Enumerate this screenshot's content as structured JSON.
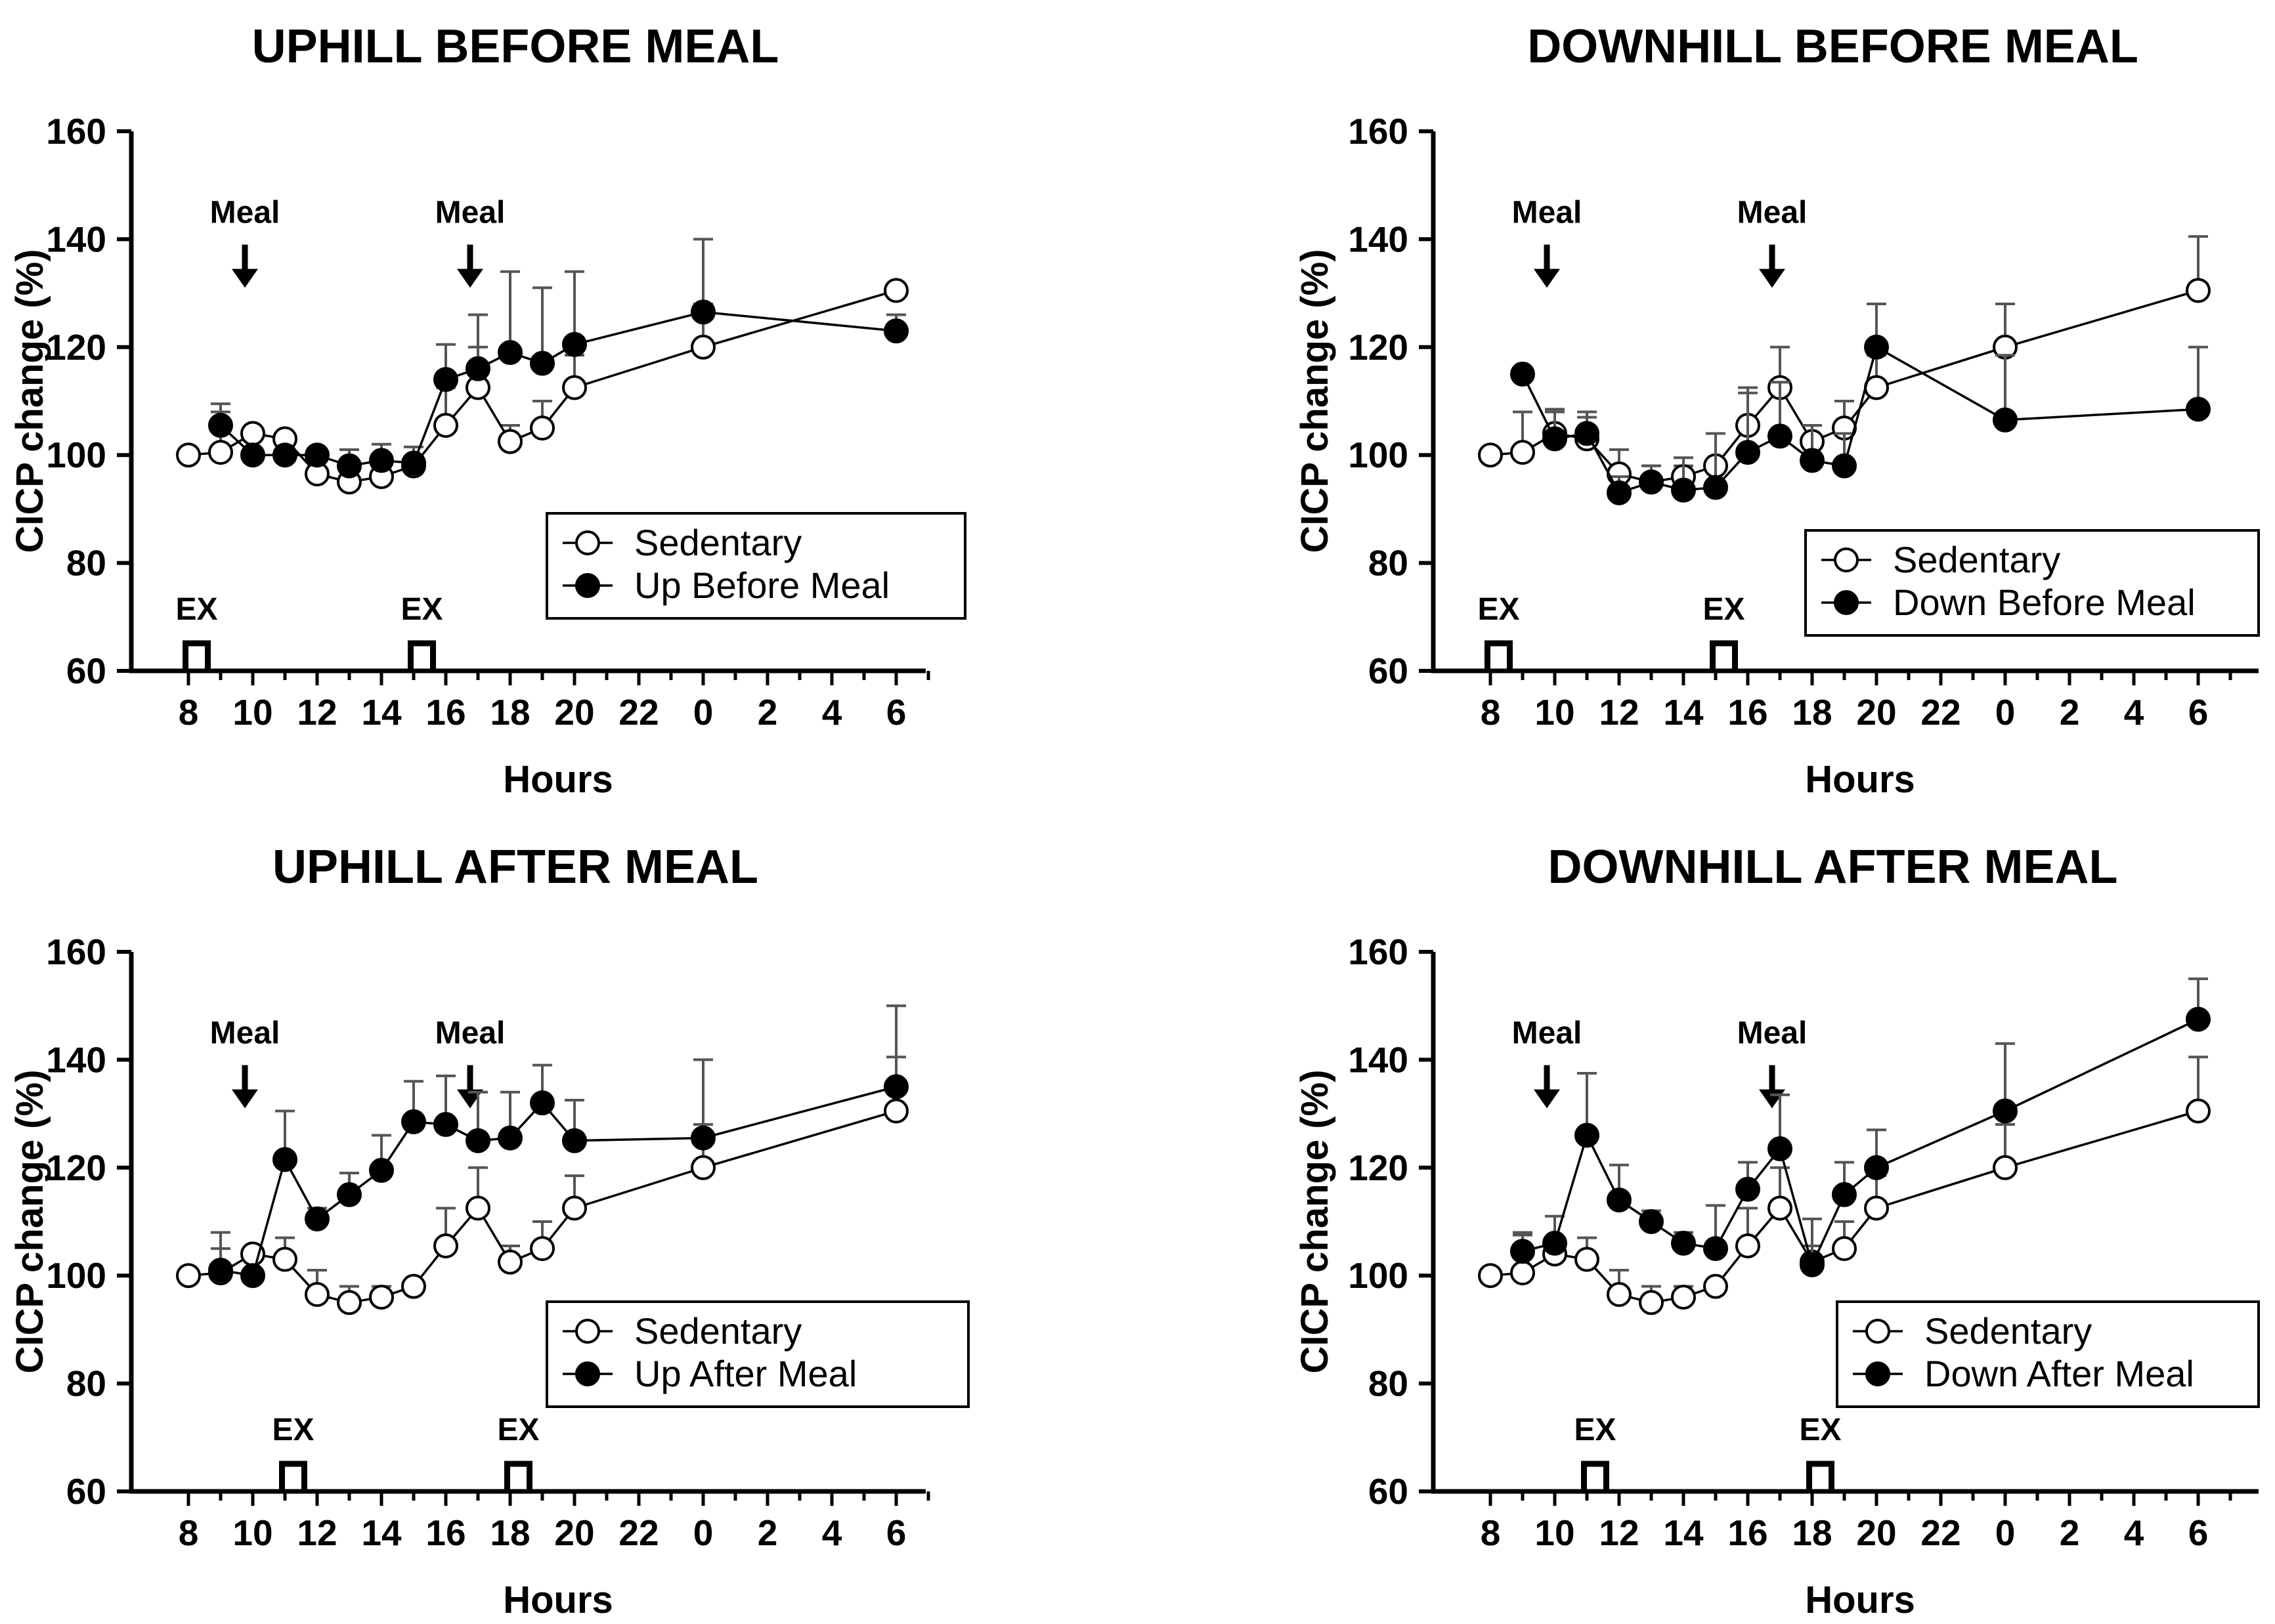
{
  "chart_data": [
    {
      "type": "line",
      "title": "UPHILL BEFORE MEAL",
      "xlabel": "Hours",
      "ylabel": "CICP change (%)",
      "ylim": [
        60,
        160
      ],
      "yticks": [
        60,
        80,
        100,
        120,
        140,
        160
      ],
      "xticks": [
        "8",
        "10",
        "12",
        "14",
        "16",
        "18",
        "20",
        "22",
        "0",
        "2",
        "4",
        "6"
      ],
      "x_units": "clock hours (8 through 30; 0-6 is next day)",
      "legend_position": "center-right",
      "annotations": {
        "meal_label": "Meal",
        "meal_hours": [
          10,
          17
        ],
        "ex_label": "EX",
        "ex_hours": [
          8.5,
          15.5
        ]
      },
      "series": [
        {
          "name": "Sedentary",
          "marker": "open-circle",
          "x": [
            8,
            9,
            10,
            11,
            12,
            13,
            14,
            15,
            16,
            17,
            18,
            19,
            20,
            24,
            30
          ],
          "y": [
            100,
            100.5,
            104,
            103,
            96.5,
            95,
            96,
            98,
            105.5,
            112.5,
            102.5,
            105,
            112.5,
            120,
            130.5
          ],
          "err": [
            0,
            7.5,
            0,
            0,
            4.5,
            3,
            2,
            0,
            7,
            7.5,
            3,
            5,
            6,
            8,
            0
          ]
        },
        {
          "name": "Up Before Meal",
          "marker": "filled-circle",
          "x": [
            9,
            10,
            11,
            12,
            13,
            14,
            15,
            16,
            17,
            18,
            19,
            20,
            24,
            30
          ],
          "y": [
            105.5,
            100,
            100,
            100,
            98,
            99,
            98.5,
            114,
            116,
            119,
            117,
            120.5,
            126.5,
            123
          ],
          "err": [
            4,
            0,
            0,
            0,
            3,
            3,
            3,
            6.5,
            10,
            15,
            14,
            13.5,
            13.5,
            3
          ]
        }
      ]
    },
    {
      "type": "line",
      "title": "DOWNHILL BEFORE MEAL",
      "xlabel": "Hours",
      "ylabel": "CICP change (%)",
      "ylim": [
        60,
        160
      ],
      "yticks": [
        60,
        80,
        100,
        120,
        140,
        160
      ],
      "xticks": [
        "8",
        "10",
        "12",
        "14",
        "16",
        "18",
        "20",
        "22",
        "0",
        "2",
        "4",
        "6"
      ],
      "x_units": "clock hours (8 through 30; 0-6 is next day)",
      "legend_position": "lower-right",
      "annotations": {
        "meal_label": "Meal",
        "meal_hours": [
          10,
          17
        ],
        "ex_label": "EX",
        "ex_hours": [
          8.5,
          15.5
        ]
      },
      "series": [
        {
          "name": "Sedentary",
          "marker": "open-circle",
          "x": [
            8,
            9,
            10,
            11,
            12,
            13,
            14,
            15,
            16,
            17,
            18,
            19,
            20,
            24,
            30
          ],
          "y": [
            100,
            100.5,
            104,
            103,
            96.5,
            95,
            96,
            98,
            105.5,
            112.5,
            102.5,
            105,
            112.5,
            120,
            130.5
          ],
          "err": [
            0,
            7.5,
            4.5,
            4,
            4.5,
            3,
            2,
            0,
            7,
            7.5,
            3,
            5,
            6,
            8,
            10
          ]
        },
        {
          "name": "Down Before Meal",
          "marker": "filled-circle",
          "x": [
            9,
            10,
            11,
            12,
            13,
            14,
            15,
            16,
            17,
            18,
            19,
            20,
            24,
            30
          ],
          "y": [
            115,
            103,
            104,
            93,
            95,
            93.5,
            94,
            100.5,
            103.5,
            99,
            98,
            120,
            106.5,
            108.5
          ],
          "err": [
            0,
            5,
            4,
            3,
            3,
            6,
            10,
            11,
            10,
            6.5,
            6,
            8,
            12,
            11.5
          ]
        }
      ]
    },
    {
      "type": "line",
      "title": "UPHILL AFTER MEAL",
      "xlabel": "Hours",
      "ylabel": "CICP change (%)",
      "ylim": [
        60,
        160
      ],
      "yticks": [
        60,
        80,
        100,
        120,
        140,
        160
      ],
      "xticks": [
        "8",
        "10",
        "12",
        "14",
        "16",
        "18",
        "20",
        "22",
        "0",
        "2",
        "4",
        "6"
      ],
      "x_units": "clock hours (8 through 30; 0-6 is next day)",
      "legend_position": "lower-right",
      "annotations": {
        "meal_label": "Meal",
        "meal_hours": [
          10,
          17
        ],
        "ex_label": "EX",
        "ex_hours": [
          11.5,
          18.5
        ]
      },
      "series": [
        {
          "name": "Sedentary",
          "marker": "open-circle",
          "x": [
            8,
            9,
            10,
            11,
            12,
            13,
            14,
            15,
            16,
            17,
            18,
            19,
            20,
            24,
            30
          ],
          "y": [
            100,
            100.5,
            104,
            103,
            96.5,
            95,
            96,
            98,
            105.5,
            112.5,
            102.5,
            105,
            112.5,
            120,
            130.5
          ],
          "err": [
            0,
            7.5,
            0,
            4,
            4.5,
            3,
            2,
            0,
            7,
            7.5,
            3,
            5,
            6,
            8,
            10
          ]
        },
        {
          "name": "Up After Meal",
          "marker": "filled-circle",
          "x": [
            9,
            10,
            11,
            12,
            13,
            14,
            15,
            16,
            17,
            18,
            19,
            20,
            24,
            30
          ],
          "y": [
            101,
            100,
            121.5,
            110.5,
            115,
            119.5,
            128.5,
            128,
            125,
            125.5,
            132,
            125,
            125.5,
            135
          ],
          "err": [
            4,
            0,
            9,
            2,
            4,
            6.5,
            7.5,
            9,
            9,
            8.5,
            7,
            7.5,
            14.5,
            15
          ]
        }
      ]
    },
    {
      "type": "line",
      "title": "DOWNHILL AFTER MEAL",
      "xlabel": "Hours",
      "ylabel": "CICP change (%)",
      "ylim": [
        60,
        160
      ],
      "yticks": [
        60,
        80,
        100,
        120,
        140,
        160
      ],
      "xticks": [
        "8",
        "10",
        "12",
        "14",
        "16",
        "18",
        "20",
        "22",
        "0",
        "2",
        "4",
        "6"
      ],
      "x_units": "clock hours (8 through 30; 0-6 is next day)",
      "legend_position": "lower-right",
      "annotations": {
        "meal_label": "Meal",
        "meal_hours": [
          10,
          17
        ],
        "ex_label": "EX",
        "ex_hours": [
          11.5,
          18.5
        ]
      },
      "series": [
        {
          "name": "Sedentary",
          "marker": "open-circle",
          "x": [
            8,
            9,
            10,
            11,
            12,
            13,
            14,
            15,
            16,
            17,
            18,
            19,
            20,
            24,
            30
          ],
          "y": [
            100,
            100.5,
            104,
            103,
            96.5,
            95,
            96,
            98,
            105.5,
            112.5,
            102.5,
            105,
            112.5,
            120,
            130.5
          ],
          "err": [
            0,
            7.5,
            0,
            4,
            4.5,
            3,
            2,
            0,
            7,
            7.5,
            3,
            5,
            6,
            8,
            10
          ]
        },
        {
          "name": "Down After Meal",
          "marker": "filled-circle",
          "x": [
            9,
            10,
            11,
            12,
            13,
            14,
            15,
            16,
            17,
            18,
            19,
            20,
            24,
            30
          ],
          "y": [
            104.5,
            106,
            126,
            114,
            110,
            106,
            105,
            116,
            123.5,
            102,
            115,
            120,
            130.5,
            147.5
          ],
          "err": [
            3,
            5,
            11.5,
            6.5,
            2,
            2,
            8,
            5,
            10,
            8.5,
            6,
            7,
            12.5,
            7.5
          ]
        }
      ]
    }
  ]
}
